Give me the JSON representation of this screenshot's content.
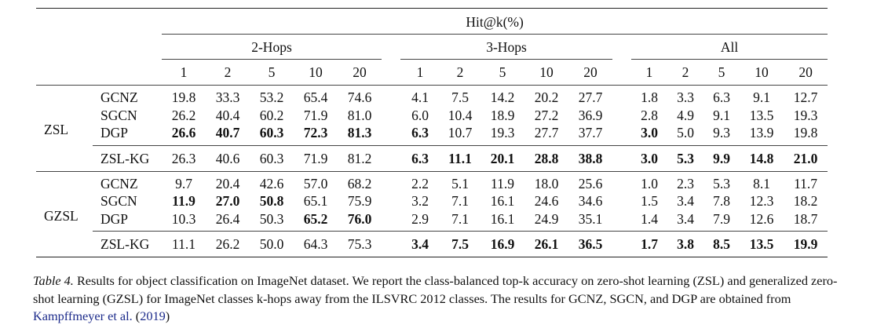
{
  "table": {
    "metric_header": "Hit@k(%)",
    "groups": [
      "2-Hops",
      "3-Hops",
      "All"
    ],
    "k_values": [
      "1",
      "2",
      "5",
      "10",
      "20"
    ],
    "blocks": [
      {
        "setting": "ZSL",
        "rows": [
          {
            "method": "GCNZ",
            "values": [
              "19.8",
              "33.3",
              "53.2",
              "65.4",
              "74.6",
              "4.1",
              "7.5",
              "14.2",
              "20.2",
              "27.7",
              "1.8",
              "3.3",
              "6.3",
              "9.1",
              "12.7"
            ],
            "bold": []
          },
          {
            "method": "SGCN",
            "values": [
              "26.2",
              "40.4",
              "60.2",
              "71.9",
              "81.0",
              "6.0",
              "10.4",
              "18.9",
              "27.2",
              "36.9",
              "2.8",
              "4.9",
              "9.1",
              "13.5",
              "19.3"
            ],
            "bold": []
          },
          {
            "method": "DGP",
            "values": [
              "26.6",
              "40.7",
              "60.3",
              "72.3",
              "81.3",
              "6.3",
              "10.7",
              "19.3",
              "27.7",
              "37.7",
              "3.0",
              "5.0",
              "9.3",
              "13.9",
              "19.8"
            ],
            "bold": [
              0,
              1,
              2,
              3,
              4,
              5,
              10
            ]
          }
        ],
        "ours": {
          "method": "ZSL-KG",
          "values": [
            "26.3",
            "40.6",
            "60.3",
            "71.9",
            "81.2",
            "6.3",
            "11.1",
            "20.1",
            "28.8",
            "38.8",
            "3.0",
            "5.3",
            "9.9",
            "14.8",
            "21.0"
          ],
          "bold": [
            5,
            6,
            7,
            8,
            9,
            10,
            11,
            12,
            13,
            14
          ]
        }
      },
      {
        "setting": "GZSL",
        "rows": [
          {
            "method": "GCNZ",
            "values": [
              "9.7",
              "20.4",
              "42.6",
              "57.0",
              "68.2",
              "2.2",
              "5.1",
              "11.9",
              "18.0",
              "25.6",
              "1.0",
              "2.3",
              "5.3",
              "8.1",
              "11.7"
            ],
            "bold": []
          },
          {
            "method": "SGCN",
            "values": [
              "11.9",
              "27.0",
              "50.8",
              "65.1",
              "75.9",
              "3.2",
              "7.1",
              "16.1",
              "24.6",
              "34.6",
              "1.5",
              "3.4",
              "7.8",
              "12.3",
              "18.2"
            ],
            "bold": [
              0,
              1,
              2
            ]
          },
          {
            "method": "DGP",
            "values": [
              "10.3",
              "26.4",
              "50.3",
              "65.2",
              "76.0",
              "2.9",
              "7.1",
              "16.1",
              "24.9",
              "35.1",
              "1.4",
              "3.4",
              "7.9",
              "12.6",
              "18.7"
            ],
            "bold": [
              3,
              4
            ]
          }
        ],
        "ours": {
          "method": "ZSL-KG",
          "values": [
            "11.1",
            "26.2",
            "50.0",
            "64.3",
            "75.3",
            "3.4",
            "7.5",
            "16.9",
            "26.1",
            "36.5",
            "1.7",
            "3.8",
            "8.5",
            "13.5",
            "19.9"
          ],
          "bold": [
            5,
            6,
            7,
            8,
            9,
            10,
            11,
            12,
            13,
            14
          ]
        }
      }
    ]
  },
  "caption": {
    "label": "Table 4.",
    "text": " Results for object classification on ImageNet dataset. We report the class-balanced top-k accuracy on zero-shot learning (ZSL) and generalized zero-shot learning (GZSL) for ImageNet classes k-hops away from the ILSVRC 2012 classes. The results for GCNZ, SGCN, and DGP are obtained from ",
    "cite_text": "Kampffmeyer et al.",
    "cite_year_open": " (",
    "cite_year": "2019",
    "cite_year_close": ")"
  },
  "colors": {
    "text": "#111111",
    "citation": "#1b2a8a"
  }
}
